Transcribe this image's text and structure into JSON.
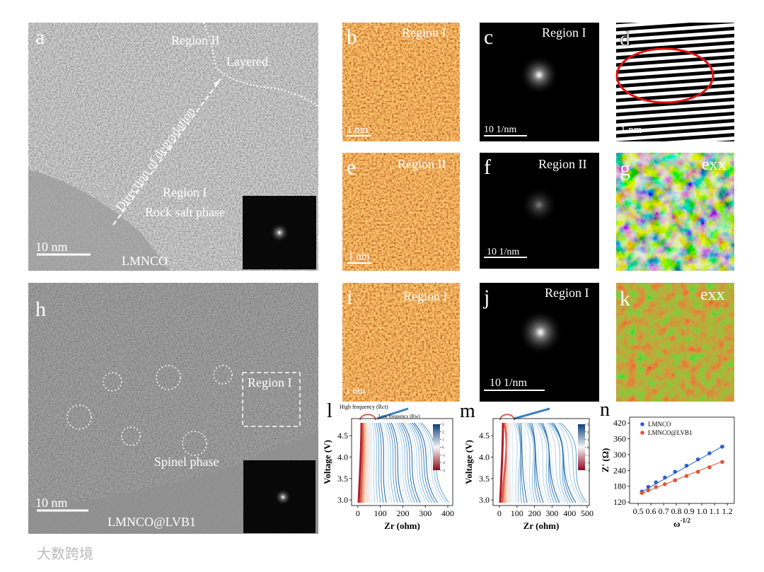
{
  "panels": {
    "a": {
      "label": "a",
      "region_2": "Region II",
      "layered": "Layered",
      "direction": "Direction of degradation",
      "region_1": "Region I",
      "phase": "Rock salt phase",
      "scale": "10 nm",
      "sample": "LMNCO"
    },
    "b": {
      "label": "b",
      "region": "Region I",
      "scale": "1 nm"
    },
    "c": {
      "label": "c",
      "region": "Region I",
      "scale": "10 1/nm"
    },
    "d": {
      "label": "d",
      "scale": "1 nm"
    },
    "e": {
      "label": "e",
      "region": "Region II",
      "scale": "1 nm"
    },
    "f": {
      "label": "f",
      "region": "Region II",
      "scale": "10 1/nm"
    },
    "g": {
      "label": "g",
      "strain": "exx"
    },
    "h": {
      "label": "h",
      "region": "Region I",
      "phase": "Spinel phase",
      "scale": "10 nm",
      "sample": "LMNCO@LVB1"
    },
    "i": {
      "label": "i",
      "region": "Region I",
      "scale": "1 nm"
    },
    "j": {
      "label": "j",
      "region": "Region I",
      "scale": "10 1/nm"
    },
    "k": {
      "label": "k",
      "strain": "exx"
    }
  },
  "watermark": "大数跨境",
  "chart_data": [
    {
      "type": "contour",
      "label": "l",
      "annotation_high": "High frequency (Rct)",
      "annotation_low": "Low frequency (Rw)",
      "x_label": "Zr (ohm)",
      "y_label": "Voltage (V)",
      "xlim": [
        -28,
        422
      ],
      "ylim": [
        2.87,
        4.9
      ],
      "xticks": [
        0,
        100,
        200,
        300,
        400
      ],
      "yticks": [
        {
          "value": 3,
          "label": "3.0"
        },
        3.5,
        {
          "value": 4,
          "label": "4.0"
        },
        4.5
      ],
      "colorbar_lim": [
        -3,
        3
      ],
      "colorbar_ticks": [
        3,
        2,
        1,
        0,
        -1,
        -2,
        -3
      ]
    },
    {
      "type": "contour",
      "label": "m",
      "x_label": "Zr (ohm)",
      "y_label": "Voltage (V)",
      "xlim": [
        -36,
        512
      ],
      "ylim": [
        2.87,
        4.9
      ],
      "xticks": [
        0,
        100,
        200,
        300,
        400,
        500
      ],
      "yticks": [
        {
          "value": 3,
          "label": "3.0"
        },
        3.5,
        {
          "value": 4,
          "label": "4.0"
        },
        4.5
      ],
      "colorbar_lim": [
        -3,
        3
      ],
      "colorbar_ticks": [
        3,
        2,
        1,
        0,
        -1,
        -2,
        -3
      ]
    },
    {
      "type": "scatter",
      "label": "n",
      "x_label": "ω",
      "x_label_sup": "-1/2",
      "y_label": "Z' (Ω)",
      "xlim": [
        0.433,
        1.255
      ],
      "ylim": [
        115,
        442
      ],
      "xticks": [
        0.5,
        0.6,
        0.7,
        0.8,
        0.9,
        {
          "value": 1,
          "label": "1.0"
        },
        1.1,
        1.2
      ],
      "yticks": [
        120,
        180,
        240,
        300,
        360,
        420
      ],
      "x": [
        0.53,
        0.58,
        0.64,
        0.71,
        0.79,
        0.88,
        0.97,
        1.06,
        1.16
      ],
      "series": [
        {
          "name": "LMNCO",
          "color": "#2a5fd6",
          "values": [
            160,
            178,
            195,
            213,
            235,
            258,
            282,
            305,
            330
          ]
        },
        {
          "name": "LMNCO@LVB1",
          "color": "#e0553a",
          "values": [
            155,
            165,
            177,
            188,
            203,
            219,
            235,
            252,
            272
          ]
        }
      ]
    }
  ]
}
